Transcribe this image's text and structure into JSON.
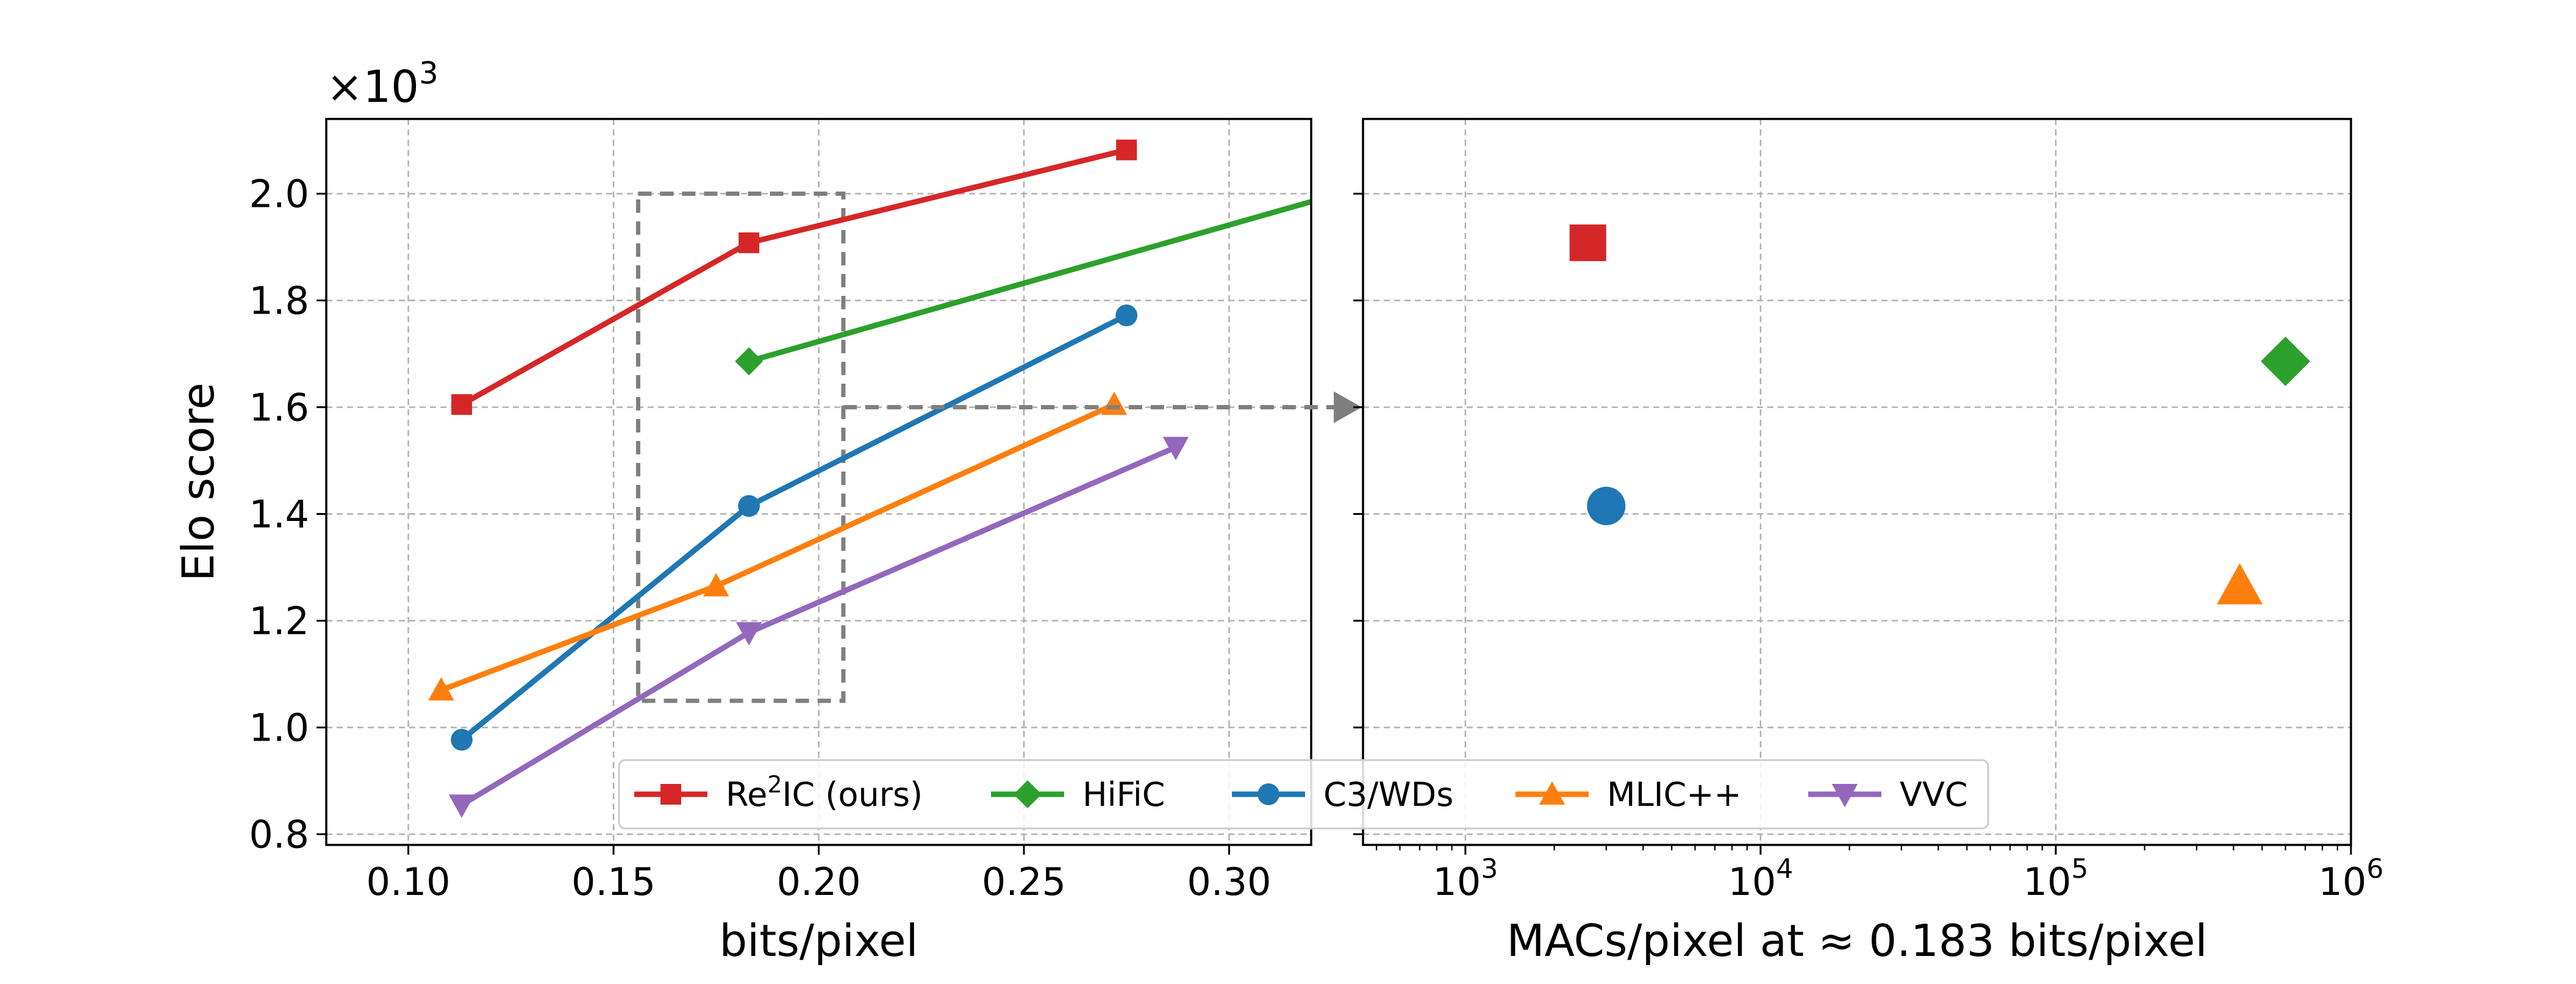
{
  "chart_data": [
    {
      "type": "line",
      "xlabel": "bits/pixel",
      "ylabel": "Elo score",
      "offset_label": "×10",
      "offset_exponent": "3",
      "xlim": [
        0.08,
        0.32
      ],
      "ylim": [
        0.78,
        2.14
      ],
      "xticks": [
        0.1,
        0.15,
        0.2,
        0.25,
        0.3
      ],
      "xtick_labels": [
        "0.10",
        "0.15",
        "0.20",
        "0.25",
        "0.30"
      ],
      "yticks": [
        0.8,
        1.0,
        1.2,
        1.4,
        1.6,
        1.8,
        2.0
      ],
      "ytick_labels": [
        "0.8",
        "1.0",
        "1.2",
        "1.4",
        "1.6",
        "1.8",
        "2.0"
      ],
      "grid": true,
      "highlight_box": {
        "x": [
          0.156,
          0.206
        ],
        "y": [
          1.05,
          2.0
        ]
      },
      "series": [
        {
          "name": "Re2IC (ours)",
          "color": "#d62728",
          "marker": "square",
          "x": [
            0.113,
            0.183,
            0.275
          ],
          "y": [
            1.605,
            1.908,
            2.082
          ]
        },
        {
          "name": "HiFiC",
          "color": "#2ca02c",
          "marker": "diamond",
          "x": [
            0.183,
            0.32
          ],
          "y": [
            1.686,
            1.985
          ],
          "marker_x": [
            0.183
          ],
          "marker_y": [
            1.686
          ]
        },
        {
          "name": "C3/WDs",
          "color": "#1f77b4",
          "marker": "circle",
          "x": [
            0.113,
            0.183,
            0.275
          ],
          "y": [
            0.977,
            1.415,
            1.772
          ]
        },
        {
          "name": "MLIC++",
          "color": "#ff7f0e",
          "marker": "triangle-up",
          "x": [
            0.108,
            0.175,
            0.272
          ],
          "y": [
            1.07,
            1.265,
            1.605
          ]
        },
        {
          "name": "VVC",
          "color": "#9467bd",
          "marker": "triangle-down",
          "x": [
            0.113,
            0.183,
            0.287
          ],
          "y": [
            0.855,
            1.178,
            1.525
          ]
        }
      ]
    },
    {
      "type": "scatter",
      "xlabel": "MACs/pixel at ≈ 0.183 bits/pixel",
      "xscale": "log",
      "xlim": [
        450,
        1000000
      ],
      "ylim": [
        0.78,
        2.14
      ],
      "xticks": [
        1000,
        10000,
        100000,
        1000000
      ],
      "xtick_base": "10",
      "xtick_exponents": [
        "3",
        "4",
        "5",
        "6"
      ],
      "grid": true,
      "points": [
        {
          "name": "Re2IC (ours)",
          "color": "#d62728",
          "marker": "square",
          "x": 2600,
          "y": 1.908
        },
        {
          "name": "HiFiC",
          "color": "#2ca02c",
          "marker": "diamond",
          "x": 600000,
          "y": 1.686
        },
        {
          "name": "C3/WDs",
          "color": "#1f77b4",
          "marker": "circle",
          "x": 3000,
          "y": 1.415
        },
        {
          "name": "MLIC++",
          "color": "#ff7f0e",
          "marker": "triangle-up",
          "x": 420000,
          "y": 1.265
        }
      ]
    }
  ],
  "legend": {
    "placement": "lower-center",
    "entries": [
      {
        "label_main": "Re",
        "label_sup": "2",
        "label_rest": "IC (ours)",
        "color": "#d62728",
        "marker": "square"
      },
      {
        "label_main": "HiFiC",
        "label_sup": "",
        "label_rest": "",
        "color": "#2ca02c",
        "marker": "diamond"
      },
      {
        "label_main": "C3/WDs",
        "label_sup": "",
        "label_rest": "",
        "color": "#1f77b4",
        "marker": "circle"
      },
      {
        "label_main": "MLIC++",
        "label_sup": "",
        "label_rest": "",
        "color": "#ff7f0e",
        "marker": "triangle-up"
      },
      {
        "label_main": "VVC",
        "label_sup": "",
        "label_rest": "",
        "color": "#9467bd",
        "marker": "triangle-down"
      }
    ]
  }
}
